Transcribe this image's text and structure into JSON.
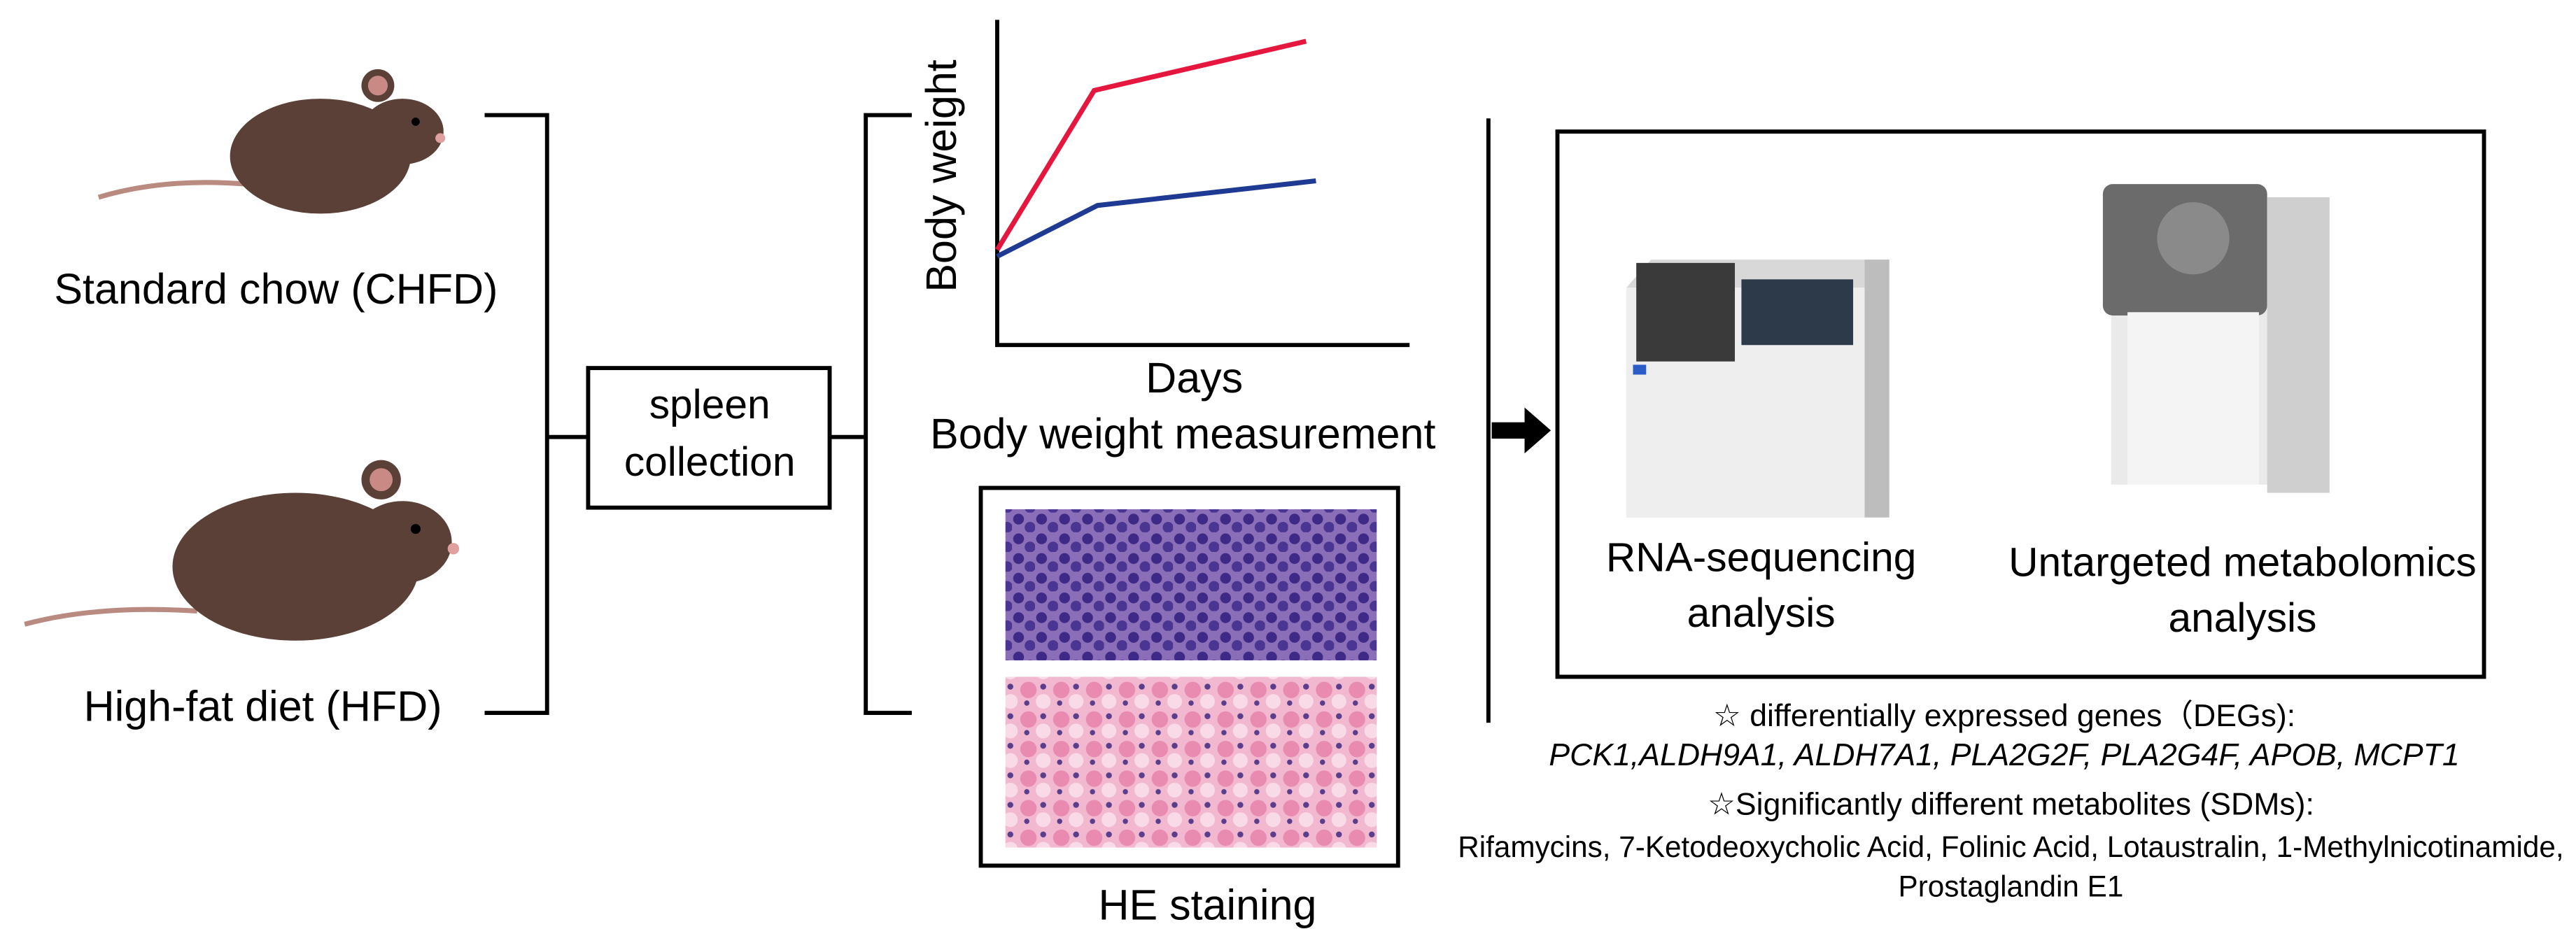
{
  "groups": [
    {
      "label": "Standard chow (CHFD)"
    },
    {
      "label": "High-fat diet (HFD)"
    }
  ],
  "step": {
    "lines": [
      "spleen",
      "collection"
    ]
  },
  "body_weight": {
    "y_label": "Body weight",
    "x_label": "Days",
    "caption": "Body weight measurement"
  },
  "he_staining": {
    "caption": "HE staining"
  },
  "analyses": [
    {
      "lines": [
        "RNA-sequencing",
        "analysis"
      ]
    },
    {
      "lines": [
        "Untargeted metabolomics",
        "analysis"
      ]
    }
  ],
  "degs": {
    "heading": "☆ differentially expressed genes（DEGs):",
    "genes": "PCK1,ALDH9A1, ALDH7A1, PLA2G2F, PLA2G4F, APOB, MCPT1"
  },
  "sdms": {
    "heading": "☆Significantly different metabolites (SDMs):",
    "lines": [
      "Rifamycins, 7-Ketodeoxycholic Acid, Folinic Acid, Lotaustralin, 1-Methylnicotinamide,",
      "Prostaglandin E1"
    ]
  }
}
